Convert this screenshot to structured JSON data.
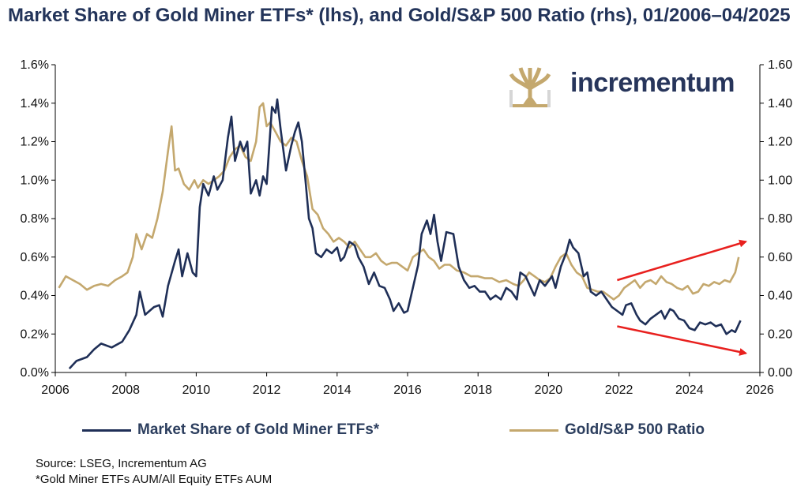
{
  "title": "Market Share of Gold Miner ETFs* (lhs), and Gold/S&P 500 Ratio (rhs), 01/2006–04/2025",
  "logo": {
    "brand": "incrementum",
    "icon": "tree-logo-icon"
  },
  "source": {
    "line1": "Source: LSEG, Incrementum AG",
    "line2": "*Gold Miner ETFs AUM/All Equity ETFs AUM"
  },
  "colors": {
    "miners": "#1f2f57",
    "ratio": "#c4a86e",
    "arrow": "#e8201e"
  },
  "chart_data": {
    "type": "line",
    "title": "Market Share of Gold Miner ETFs* (lhs), and Gold/S&P 500 Ratio (rhs), 01/2006–04/2025",
    "x_range": [
      2006,
      2026
    ],
    "x_ticks": [
      "2006",
      "2008",
      "2010",
      "2012",
      "2014",
      "2016",
      "2018",
      "2020",
      "2022",
      "2024",
      "2026"
    ],
    "y_left": {
      "range": [
        0,
        1.6
      ],
      "ticks": [
        "0.0%",
        "0.2%",
        "0.4%",
        "0.6%",
        "0.8%",
        "1.0%",
        "1.2%",
        "1.4%",
        "1.6%"
      ]
    },
    "y_right": {
      "range": [
        0,
        1.6
      ],
      "ticks": [
        "0.00",
        "0.20",
        "0.40",
        "0.60",
        "0.80",
        "1.00",
        "1.20",
        "1.40",
        "1.60"
      ]
    },
    "series": [
      {
        "name": "Market Share of Gold Miner ETFs*",
        "axis": "left",
        "points": [
          [
            2006.4,
            0.02
          ],
          [
            2006.6,
            0.06
          ],
          [
            2006.9,
            0.08
          ],
          [
            2007.1,
            0.12
          ],
          [
            2007.3,
            0.15
          ],
          [
            2007.6,
            0.13
          ],
          [
            2007.9,
            0.16
          ],
          [
            2008.1,
            0.22
          ],
          [
            2008.3,
            0.3
          ],
          [
            2008.4,
            0.42
          ],
          [
            2008.55,
            0.3
          ],
          [
            2008.8,
            0.34
          ],
          [
            2008.95,
            0.35
          ],
          [
            2009.05,
            0.29
          ],
          [
            2009.2,
            0.45
          ],
          [
            2009.4,
            0.58
          ],
          [
            2009.5,
            0.64
          ],
          [
            2009.6,
            0.5
          ],
          [
            2009.75,
            0.62
          ],
          [
            2009.9,
            0.52
          ],
          [
            2010.0,
            0.5
          ],
          [
            2010.1,
            0.86
          ],
          [
            2010.2,
            0.98
          ],
          [
            2010.35,
            0.92
          ],
          [
            2010.5,
            1.02
          ],
          [
            2010.6,
            0.95
          ],
          [
            2010.75,
            1.0
          ],
          [
            2010.9,
            1.22
          ],
          [
            2011.0,
            1.33
          ],
          [
            2011.1,
            1.1
          ],
          [
            2011.25,
            1.2
          ],
          [
            2011.35,
            1.15
          ],
          [
            2011.45,
            1.2
          ],
          [
            2011.55,
            0.93
          ],
          [
            2011.7,
            1.0
          ],
          [
            2011.8,
            0.92
          ],
          [
            2011.9,
            1.02
          ],
          [
            2012.0,
            0.98
          ],
          [
            2012.15,
            1.38
          ],
          [
            2012.25,
            1.35
          ],
          [
            2012.3,
            1.42
          ],
          [
            2012.4,
            1.26
          ],
          [
            2012.55,
            1.05
          ],
          [
            2012.7,
            1.18
          ],
          [
            2012.8,
            1.25
          ],
          [
            2012.9,
            1.3
          ],
          [
            2013.0,
            1.2
          ],
          [
            2013.1,
            1.0
          ],
          [
            2013.2,
            0.8
          ],
          [
            2013.3,
            0.75
          ],
          [
            2013.4,
            0.62
          ],
          [
            2013.55,
            0.6
          ],
          [
            2013.7,
            0.64
          ],
          [
            2013.85,
            0.62
          ],
          [
            2014.0,
            0.65
          ],
          [
            2014.1,
            0.58
          ],
          [
            2014.2,
            0.6
          ],
          [
            2014.35,
            0.68
          ],
          [
            2014.5,
            0.66
          ],
          [
            2014.6,
            0.6
          ],
          [
            2014.75,
            0.55
          ],
          [
            2014.9,
            0.46
          ],
          [
            2015.05,
            0.52
          ],
          [
            2015.2,
            0.45
          ],
          [
            2015.35,
            0.44
          ],
          [
            2015.5,
            0.38
          ],
          [
            2015.6,
            0.32
          ],
          [
            2015.75,
            0.36
          ],
          [
            2015.9,
            0.31
          ],
          [
            2016.0,
            0.32
          ],
          [
            2016.15,
            0.44
          ],
          [
            2016.3,
            0.56
          ],
          [
            2016.4,
            0.72
          ],
          [
            2016.55,
            0.79
          ],
          [
            2016.65,
            0.72
          ],
          [
            2016.75,
            0.82
          ],
          [
            2016.85,
            0.68
          ],
          [
            2016.95,
            0.58
          ],
          [
            2017.1,
            0.73
          ],
          [
            2017.3,
            0.72
          ],
          [
            2017.45,
            0.55
          ],
          [
            2017.6,
            0.48
          ],
          [
            2017.75,
            0.44
          ],
          [
            2017.9,
            0.45
          ],
          [
            2018.05,
            0.42
          ],
          [
            2018.2,
            0.42
          ],
          [
            2018.35,
            0.38
          ],
          [
            2018.5,
            0.4
          ],
          [
            2018.65,
            0.38
          ],
          [
            2018.8,
            0.44
          ],
          [
            2018.95,
            0.42
          ],
          [
            2019.1,
            0.38
          ],
          [
            2019.2,
            0.52
          ],
          [
            2019.35,
            0.5
          ],
          [
            2019.5,
            0.44
          ],
          [
            2019.6,
            0.4
          ],
          [
            2019.75,
            0.48
          ],
          [
            2019.9,
            0.45
          ],
          [
            2020.1,
            0.5
          ],
          [
            2020.2,
            0.44
          ],
          [
            2020.35,
            0.55
          ],
          [
            2020.5,
            0.62
          ],
          [
            2020.6,
            0.69
          ],
          [
            2020.7,
            0.65
          ],
          [
            2020.85,
            0.62
          ],
          [
            2021.0,
            0.5
          ],
          [
            2021.1,
            0.52
          ],
          [
            2021.2,
            0.42
          ],
          [
            2021.35,
            0.4
          ],
          [
            2021.5,
            0.42
          ],
          [
            2021.65,
            0.38
          ],
          [
            2021.8,
            0.34
          ],
          [
            2021.95,
            0.32
          ],
          [
            2022.1,
            0.3
          ],
          [
            2022.2,
            0.35
          ],
          [
            2022.35,
            0.36
          ],
          [
            2022.5,
            0.3
          ],
          [
            2022.6,
            0.27
          ],
          [
            2022.75,
            0.25
          ],
          [
            2022.9,
            0.28
          ],
          [
            2023.05,
            0.3
          ],
          [
            2023.2,
            0.32
          ],
          [
            2023.3,
            0.28
          ],
          [
            2023.45,
            0.33
          ],
          [
            2023.55,
            0.32
          ],
          [
            2023.7,
            0.28
          ],
          [
            2023.85,
            0.27
          ],
          [
            2024.0,
            0.23
          ],
          [
            2024.15,
            0.22
          ],
          [
            2024.3,
            0.26
          ],
          [
            2024.45,
            0.25
          ],
          [
            2024.6,
            0.26
          ],
          [
            2024.75,
            0.24
          ],
          [
            2024.9,
            0.25
          ],
          [
            2025.05,
            0.2
          ],
          [
            2025.2,
            0.22
          ],
          [
            2025.3,
            0.21
          ],
          [
            2025.45,
            0.27
          ]
        ]
      },
      {
        "name": "Gold/S&P 500 Ratio",
        "axis": "right",
        "points": [
          [
            2006.1,
            0.44
          ],
          [
            2006.3,
            0.5
          ],
          [
            2006.5,
            0.48
          ],
          [
            2006.7,
            0.46
          ],
          [
            2006.9,
            0.43
          ],
          [
            2007.1,
            0.45
          ],
          [
            2007.3,
            0.46
          ],
          [
            2007.5,
            0.45
          ],
          [
            2007.7,
            0.48
          ],
          [
            2007.9,
            0.5
          ],
          [
            2008.05,
            0.52
          ],
          [
            2008.2,
            0.6
          ],
          [
            2008.3,
            0.72
          ],
          [
            2008.45,
            0.64
          ],
          [
            2008.6,
            0.72
          ],
          [
            2008.75,
            0.7
          ],
          [
            2008.9,
            0.8
          ],
          [
            2009.05,
            0.94
          ],
          [
            2009.2,
            1.15
          ],
          [
            2009.3,
            1.28
          ],
          [
            2009.4,
            1.05
          ],
          [
            2009.5,
            1.06
          ],
          [
            2009.65,
            0.98
          ],
          [
            2009.8,
            0.95
          ],
          [
            2009.95,
            1.0
          ],
          [
            2010.05,
            0.96
          ],
          [
            2010.2,
            1.0
          ],
          [
            2010.35,
            0.98
          ],
          [
            2010.5,
            1.0
          ],
          [
            2010.65,
            1.02
          ],
          [
            2010.8,
            1.05
          ],
          [
            2010.95,
            1.12
          ],
          [
            2011.1,
            1.16
          ],
          [
            2011.25,
            1.18
          ],
          [
            2011.4,
            1.12
          ],
          [
            2011.55,
            1.1
          ],
          [
            2011.7,
            1.2
          ],
          [
            2011.8,
            1.38
          ],
          [
            2011.9,
            1.4
          ],
          [
            2012.0,
            1.28
          ],
          [
            2012.1,
            1.3
          ],
          [
            2012.25,
            1.25
          ],
          [
            2012.4,
            1.2
          ],
          [
            2012.55,
            1.18
          ],
          [
            2012.7,
            1.22
          ],
          [
            2012.85,
            1.2
          ],
          [
            2013.0,
            1.1
          ],
          [
            2013.15,
            1.02
          ],
          [
            2013.3,
            0.85
          ],
          [
            2013.45,
            0.82
          ],
          [
            2013.6,
            0.75
          ],
          [
            2013.75,
            0.72
          ],
          [
            2013.9,
            0.68
          ],
          [
            2014.05,
            0.7
          ],
          [
            2014.2,
            0.68
          ],
          [
            2014.35,
            0.65
          ],
          [
            2014.5,
            0.68
          ],
          [
            2014.65,
            0.64
          ],
          [
            2014.8,
            0.6
          ],
          [
            2014.95,
            0.6
          ],
          [
            2015.1,
            0.62
          ],
          [
            2015.25,
            0.58
          ],
          [
            2015.4,
            0.56
          ],
          [
            2015.55,
            0.57
          ],
          [
            2015.7,
            0.57
          ],
          [
            2015.85,
            0.55
          ],
          [
            2016.0,
            0.53
          ],
          [
            2016.15,
            0.6
          ],
          [
            2016.3,
            0.62
          ],
          [
            2016.45,
            0.64
          ],
          [
            2016.6,
            0.6
          ],
          [
            2016.75,
            0.58
          ],
          [
            2016.9,
            0.54
          ],
          [
            2017.05,
            0.56
          ],
          [
            2017.2,
            0.56
          ],
          [
            2017.4,
            0.53
          ],
          [
            2017.6,
            0.52
          ],
          [
            2017.8,
            0.5
          ],
          [
            2018.0,
            0.5
          ],
          [
            2018.2,
            0.49
          ],
          [
            2018.4,
            0.49
          ],
          [
            2018.6,
            0.47
          ],
          [
            2018.8,
            0.48
          ],
          [
            2019.0,
            0.46
          ],
          [
            2019.15,
            0.45
          ],
          [
            2019.3,
            0.48
          ],
          [
            2019.45,
            0.52
          ],
          [
            2019.6,
            0.5
          ],
          [
            2019.75,
            0.48
          ],
          [
            2019.9,
            0.47
          ],
          [
            2020.05,
            0.49
          ],
          [
            2020.2,
            0.55
          ],
          [
            2020.35,
            0.6
          ],
          [
            2020.5,
            0.62
          ],
          [
            2020.65,
            0.56
          ],
          [
            2020.8,
            0.52
          ],
          [
            2020.95,
            0.5
          ],
          [
            2021.1,
            0.44
          ],
          [
            2021.25,
            0.43
          ],
          [
            2021.4,
            0.42
          ],
          [
            2021.55,
            0.42
          ],
          [
            2021.7,
            0.4
          ],
          [
            2021.85,
            0.38
          ],
          [
            2022.0,
            0.4
          ],
          [
            2022.15,
            0.44
          ],
          [
            2022.3,
            0.46
          ],
          [
            2022.45,
            0.48
          ],
          [
            2022.6,
            0.44
          ],
          [
            2022.75,
            0.47
          ],
          [
            2022.9,
            0.48
          ],
          [
            2023.05,
            0.46
          ],
          [
            2023.2,
            0.5
          ],
          [
            2023.35,
            0.47
          ],
          [
            2023.5,
            0.46
          ],
          [
            2023.65,
            0.44
          ],
          [
            2023.8,
            0.43
          ],
          [
            2023.95,
            0.45
          ],
          [
            2024.1,
            0.41
          ],
          [
            2024.25,
            0.42
          ],
          [
            2024.4,
            0.46
          ],
          [
            2024.55,
            0.45
          ],
          [
            2024.7,
            0.47
          ],
          [
            2024.85,
            0.46
          ],
          [
            2025.0,
            0.48
          ],
          [
            2025.15,
            0.47
          ],
          [
            2025.3,
            0.52
          ],
          [
            2025.4,
            0.6
          ]
        ]
      }
    ],
    "annotations": [
      {
        "type": "arrow",
        "from": [
          2021.95,
          0.48
        ],
        "to": [
          2025.6,
          0.68
        ],
        "color": "#e8201e"
      },
      {
        "type": "arrow",
        "from": [
          2021.95,
          0.24
        ],
        "to": [
          2025.6,
          0.1
        ],
        "color": "#e8201e"
      }
    ]
  }
}
